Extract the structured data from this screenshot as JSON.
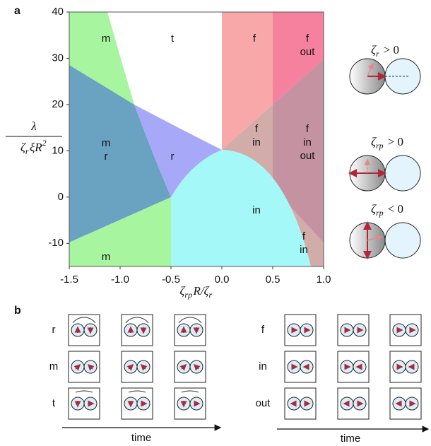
{
  "panel_a": {
    "label": "a",
    "y_label": {
      "numerator": "λ",
      "denominator": [
        {
          "main": "ζ",
          "sub": "r"
        },
        {
          "main": "ξR",
          "sup": "2"
        }
      ]
    },
    "x_label": [
      {
        "main": "ζ",
        "sub": "rp"
      },
      {
        "main": "R/ζ",
        "sub": "r"
      }
    ],
    "xlim": [
      -1.5,
      1.0
    ],
    "ylim": [
      -15,
      40
    ],
    "xticks": [
      -1.5,
      {
        "value": -1,
        "label": "-1.0"
      },
      -0.5,
      {
        "value": 0,
        "label": "0.0"
      },
      0.5,
      {
        "value": 1,
        "label": "1.0"
      }
    ],
    "yticks": [
      40,
      30,
      20,
      10,
      0,
      -10
    ],
    "regions": [
      [
        "m"
      ],
      [
        "t"
      ],
      [
        "f"
      ],
      [
        "f",
        "out"
      ],
      [
        "m",
        "r"
      ],
      [
        "r"
      ],
      [
        "f",
        "in"
      ],
      [
        "f",
        "in",
        "out"
      ],
      [
        "in"
      ],
      [
        "f",
        "in"
      ],
      [
        "m"
      ]
    ],
    "insets": [
      {
        "main": "ζ",
        "sub": "r",
        "relation": "> 0"
      },
      {
        "main": "ζ",
        "sub": "rp",
        "relation": "> 0"
      },
      {
        "main": "ζ",
        "sub": "rp",
        "relation": "< 0"
      }
    ]
  },
  "panel_b": {
    "label": "b",
    "left_rows": [
      "r",
      "m",
      "t"
    ],
    "right_rows": [
      "f",
      "in",
      "out"
    ],
    "time_labels": [
      "time",
      "time"
    ]
  }
}
